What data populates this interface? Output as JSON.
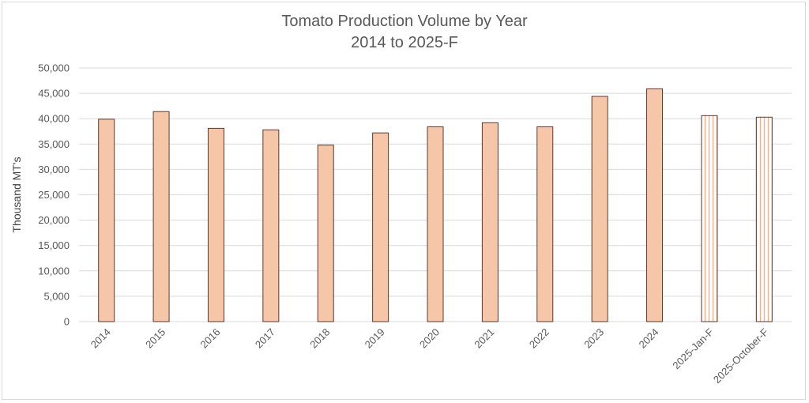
{
  "chart_data": {
    "type": "bar",
    "title": "Tomato Production Volume by Year",
    "subtitle": "2014 to 2025-F",
    "ylabel": "Thousand MT's",
    "xlabel": "",
    "ylim": [
      0,
      50000
    ],
    "yticks": [
      "0",
      "5,000",
      "10,000",
      "15,000",
      "20,000",
      "25,000",
      "30,000",
      "35,000",
      "40,000",
      "45,000",
      "50,000"
    ],
    "categories": [
      "2014",
      "2015",
      "2016",
      "2017",
      "2018",
      "2019",
      "2020",
      "2021",
      "2022",
      "2023",
      "2024",
      "2025-Jan-F",
      "2025-October-F"
    ],
    "values": [
      39900,
      41400,
      38100,
      37800,
      34800,
      37200,
      38400,
      39200,
      38400,
      44400,
      45900,
      40600,
      40300
    ],
    "forecast": [
      false,
      false,
      false,
      false,
      false,
      false,
      false,
      false,
      false,
      false,
      false,
      true,
      true
    ],
    "grid": true,
    "legend": "none",
    "colors": {
      "bar_fill": "#f6c6a8",
      "bar_stroke": "#5a3a30",
      "forecast_stripe": "#f2b38f",
      "grid": "#d9d9d9"
    }
  }
}
